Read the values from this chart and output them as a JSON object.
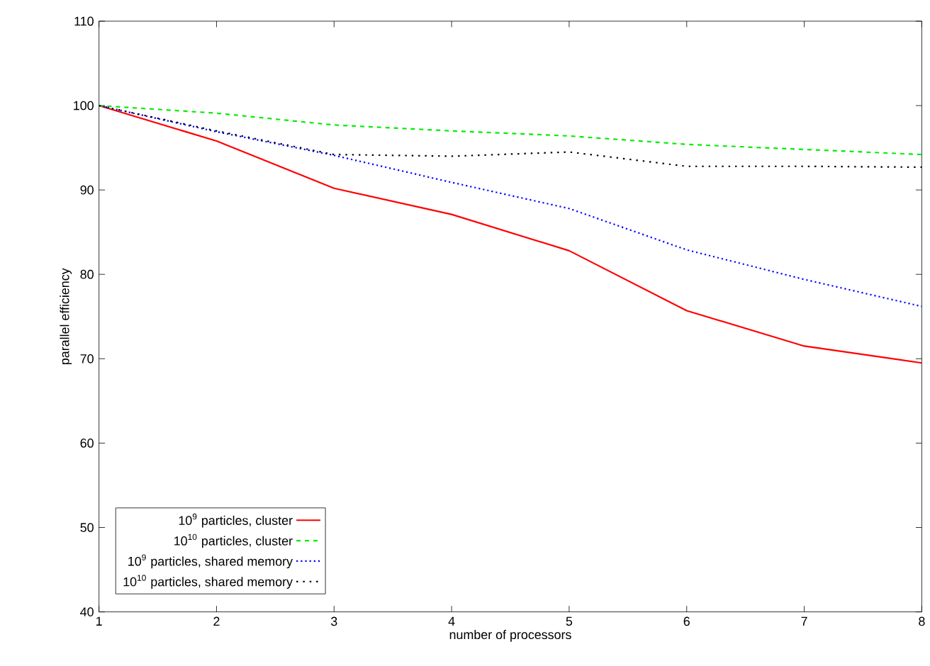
{
  "chart_data": {
    "type": "line",
    "xlabel": "number of processors",
    "ylabel": "parallel efficiency",
    "x": [
      1,
      2,
      3,
      4,
      5,
      6,
      7,
      8
    ],
    "series": [
      {
        "name": "10$^{9}$ particles, cluster",
        "color": "#ff0000",
        "line_style": "solid",
        "values": [
          100,
          95.8,
          90.2,
          87.1,
          82.8,
          75.7,
          71.5,
          69.5
        ]
      },
      {
        "name": "10$^{10}$ particles, cluster",
        "color": "#00ee00",
        "line_style": "dashed",
        "values": [
          100,
          99.1,
          97.7,
          97.0,
          96.4,
          95.4,
          94.8,
          94.2
        ]
      },
      {
        "name": "10$^{9}$ particles, shared memory",
        "color": "#0000ff",
        "line_style": "dotted",
        "values": [
          100,
          96.9,
          94.1,
          90.9,
          87.8,
          82.9,
          79.4,
          76.2
        ]
      },
      {
        "name": "10$^{10}$ particles, shared memory",
        "color": "#000000",
        "line_style": "dotted",
        "values": [
          100,
          97.0,
          94.2,
          94.0,
          94.5,
          92.8,
          92.8,
          92.7
        ]
      }
    ],
    "xlim": [
      1,
      8
    ],
    "ylim": [
      40,
      110
    ],
    "xticks": [
      1,
      2,
      3,
      4,
      5,
      6,
      7,
      8
    ],
    "yticks": [
      40,
      50,
      60,
      70,
      80,
      90,
      100,
      110
    ],
    "grid": false,
    "legend": "bottom left",
    "marker": "none"
  }
}
